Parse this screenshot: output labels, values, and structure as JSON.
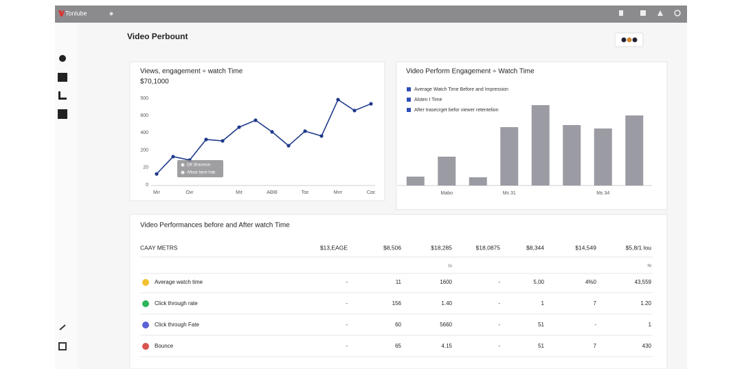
{
  "header": {
    "app_name": "Tonlube",
    "page_title": "Video Perbount"
  },
  "line_card": {
    "chart_data": {
      "type": "line",
      "title": "Views, engagement ÷ watch Time",
      "subtitle": "$70,1000",
      "categories": [
        "Mır",
        null,
        "Ονr",
        null,
        null,
        "Mıt",
        null,
        "ΑΘΘ",
        null,
        "Ταε",
        null,
        "Mırr",
        null,
        "Cαε"
      ],
      "series": [
        {
          "name": "Views",
          "color": "#1f3a8a",
          "values": [
            63,
            163,
            143,
            262,
            254,
            333,
            373,
            306,
            226,
            310,
            282,
            492,
            429,
            468
          ]
        }
      ],
      "ylim": [
        0,
        500
      ],
      "yticks": [
        0,
        {
          "value": 100,
          "label": "20"
        },
        200,
        {
          "value": 300,
          "label": "400"
        },
        {
          "value": 400,
          "label": "600"
        },
        500
      ],
      "grid": false,
      "tooltip": [
        "ΩK Bravmon",
        "Aftoor bere hab"
      ]
    }
  },
  "bar_card": {
    "chart_data": {
      "type": "bar",
      "title": "Video Perform Engagement ÷ Watch Time",
      "legend": {
        "position": "upper left",
        "color": "#2f4fb8",
        "items": [
          "Average Watch Time Before and Impression",
          "Alsten I Time",
          "After trasecrget befor viewer retentelion"
        ]
      },
      "categories": [
        null,
        "Mabo",
        null,
        "Ms 31",
        null,
        null,
        "Ms 34",
        null
      ],
      "values": [
        13,
        42,
        12,
        85,
        117,
        88,
        83,
        102
      ],
      "color": "#9b9ba3",
      "ylim": [
        0,
        130
      ]
    }
  },
  "table": {
    "title": "Video Performances before and After watch Time",
    "columns": [
      "CAAY METRS",
      "$13,EAGE",
      "$8,506",
      "$18,285",
      "$18,0875",
      "$8,344",
      "$14,549",
      "$5,8/1 lou"
    ],
    "units": [
      null,
      null,
      null,
      "Ju",
      null,
      null,
      null,
      "Ni"
    ],
    "rows": [
      {
        "color": "#f2c230",
        "cells": [
          "Average watch time",
          "-",
          "11",
          "1600",
          "-",
          "5,00",
          "4%0",
          "43,559"
        ]
      },
      {
        "color": "#2fb55a",
        "cells": [
          "Click through rate",
          "-",
          "156",
          "1.40",
          "-",
          "1",
          "7",
          "1.20"
        ]
      },
      {
        "color": "#5b63d6",
        "cells": [
          "Click through Fate",
          "-",
          "60",
          "5660",
          "-",
          "51",
          "-",
          "1"
        ]
      },
      {
        "color": "#d9534f",
        "cells": [
          "Bounce",
          "-",
          "65",
          "4.15",
          "-",
          "51",
          "7",
          "430"
        ]
      }
    ]
  }
}
